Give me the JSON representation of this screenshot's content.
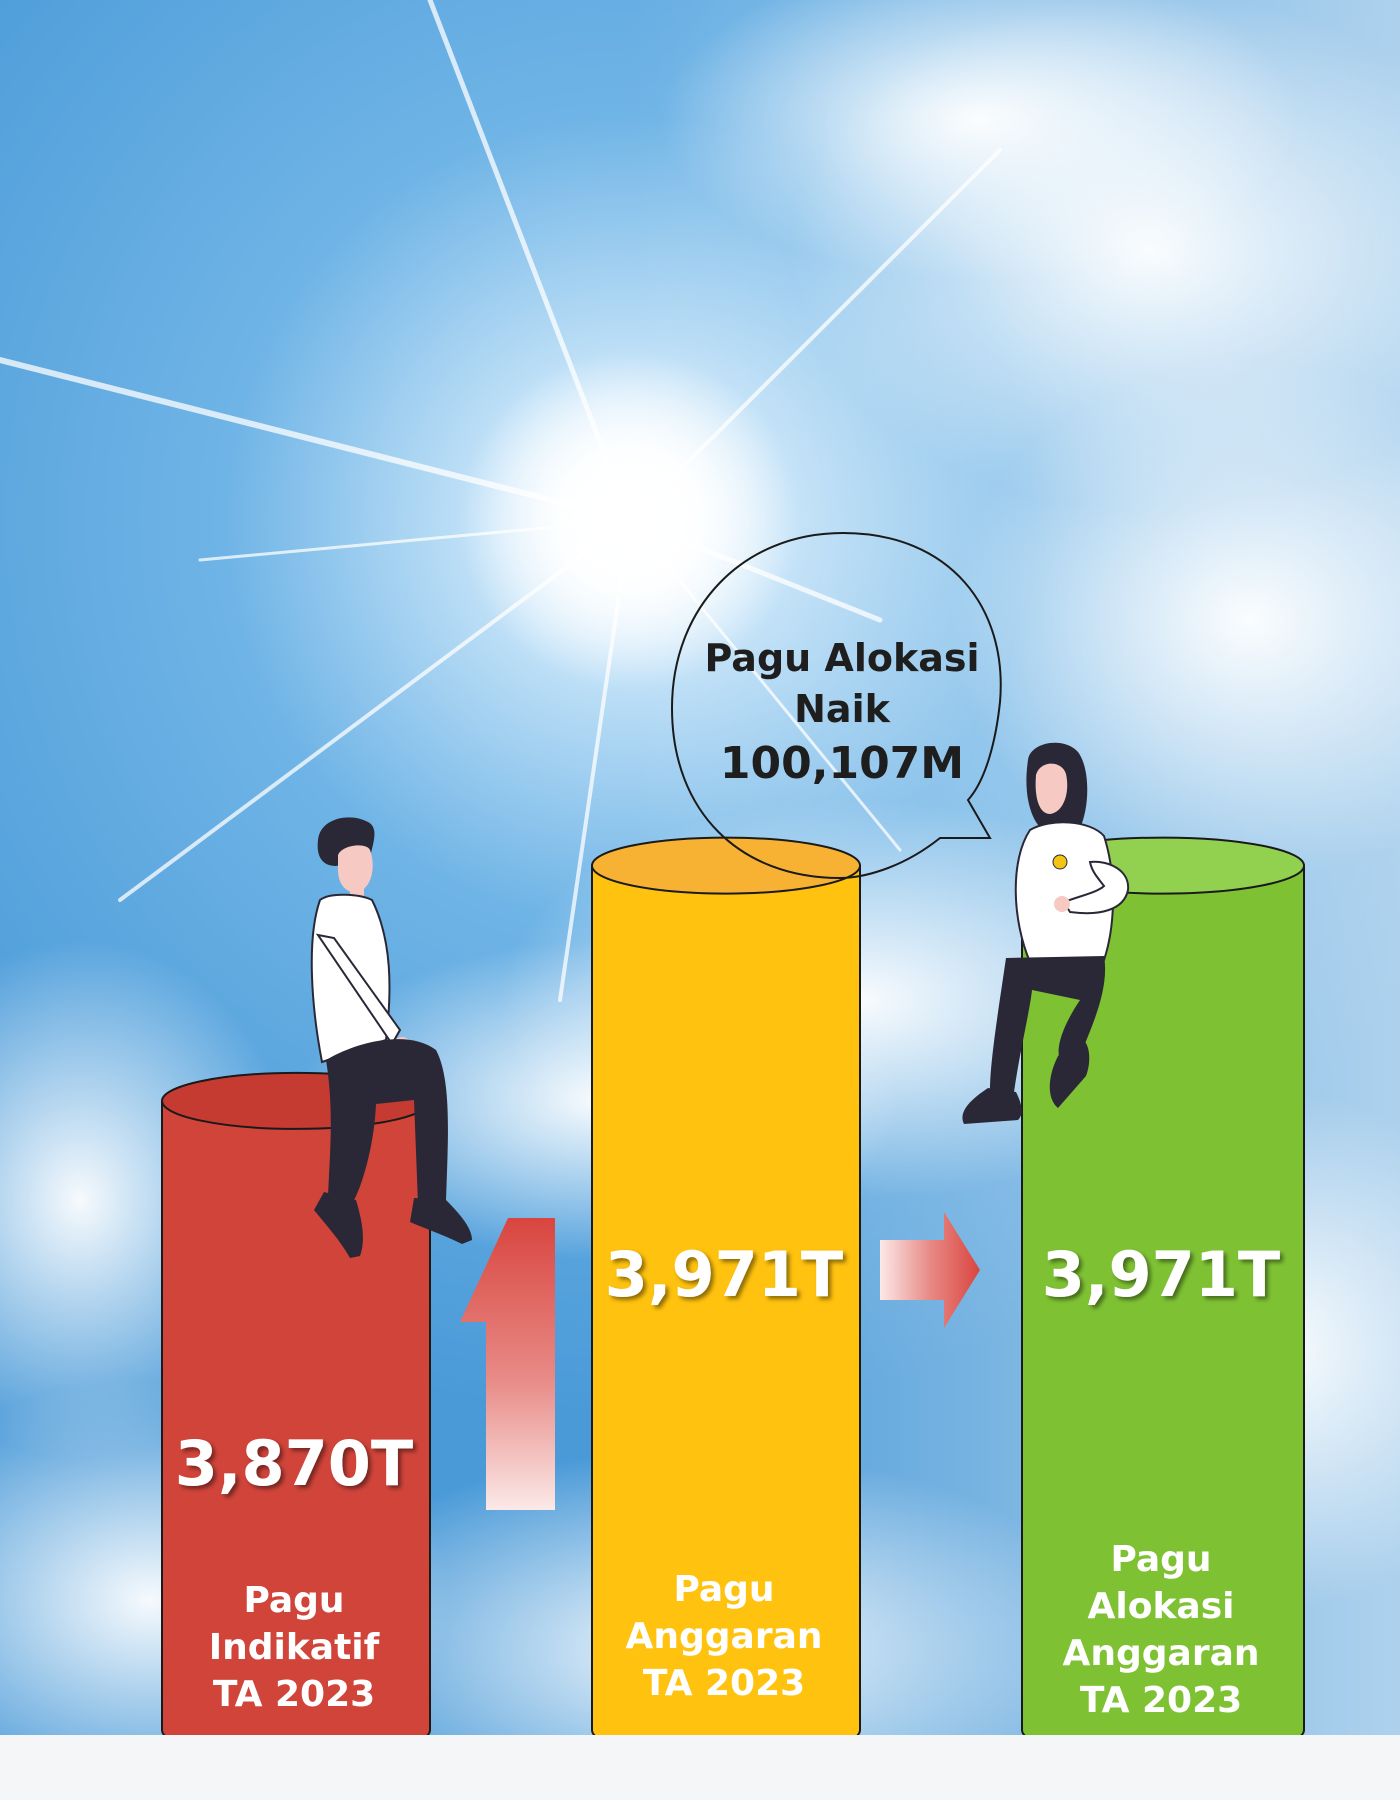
{
  "chart_data": {
    "type": "bar",
    "categories": [
      [
        "Pagu",
        "Indikatif",
        "TA 2023"
      ],
      [
        "Pagu",
        "Anggaran",
        "TA 2023"
      ],
      [
        "Pagu",
        "Alokasi",
        "Anggaran",
        "TA 2023"
      ]
    ],
    "values": [
      3.87,
      3.971,
      3.971
    ],
    "value_labels": [
      "3,870T",
      "3,971T",
      "3,971T"
    ],
    "colors": [
      "#d1443a",
      "#ffc20e",
      "#7ec234"
    ],
    "top_colors": [
      "#c63b31",
      "#f8b233",
      "#92d050"
    ],
    "ylim": [
      3.6,
      4.1
    ],
    "callout": {
      "lines": [
        "Pagu Alokasi",
        "Naik",
        "100,107M"
      ]
    }
  }
}
